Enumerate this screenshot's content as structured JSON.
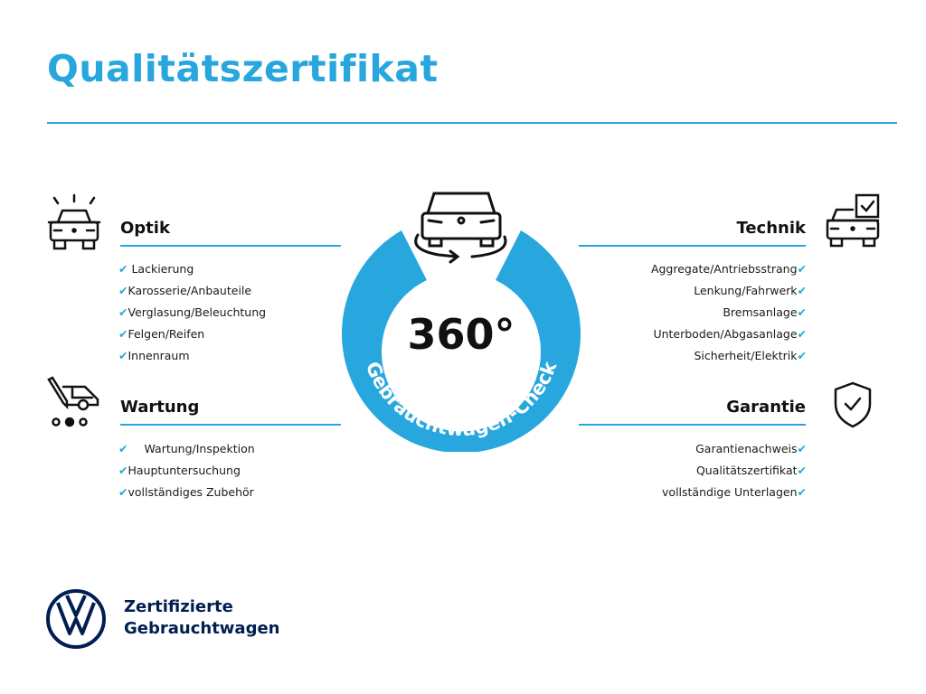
{
  "title": "Qualitätszertifikat",
  "badge": {
    "number": "360°",
    "arc_text": "Gebrauchtwagen-Check"
  },
  "sections": {
    "optik": {
      "heading": "Optik",
      "items": [
        "Lackierung",
        "Karosserie/Anbauteile",
        "Verglasung/Beleuchtung",
        "Felgen/Reifen",
        "Innenraum"
      ]
    },
    "wartung": {
      "heading": "Wartung",
      "items": [
        "Wartung/Inspektion",
        "Hauptuntersuchung",
        "vollständiges Zubehör"
      ]
    },
    "technik": {
      "heading": "Technik",
      "items": [
        "Aggregate/Antriebsstrang",
        "Lenkung/Fahrwerk",
        "Bremsanlage",
        "Unterboden/Abgasanlage",
        "Sicherheit/Elektrik"
      ]
    },
    "garantie": {
      "heading": "Garantie",
      "items": [
        "Garantienachweis",
        "Qualitätszertifikat",
        "vollständige Unterlagen"
      ]
    }
  },
  "check_symbol": "✔",
  "brand": {
    "line1": "Zertifizierte",
    "line2": "Gebrauchtwagen",
    "logo": "vw-logo"
  },
  "colors": {
    "accent": "#27a7dd",
    "navy": "#001e50"
  }
}
